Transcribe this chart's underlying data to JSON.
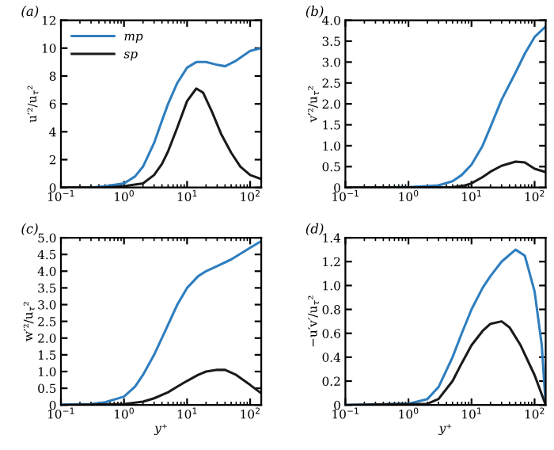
{
  "chart_data": [
    {
      "type": "line",
      "title": "(a)",
      "ylabel": "u′²/u$_{τ}$²",
      "log": "x",
      "legend": "top left",
      "grid": false,
      "xlim": [
        0.1,
        150
      ],
      "ylim": [
        0,
        12
      ],
      "xticks": [
        {
          "value": 0.1,
          "label": "10$^{−1}$"
        },
        {
          "value": 1,
          "label": "10$^{0}$"
        },
        {
          "value": 10,
          "label": "10$^{1}$"
        },
        {
          "value": 100,
          "label": "10$^{2}$"
        }
      ],
      "yticks": [
        0,
        2,
        4,
        6,
        8,
        10,
        12
      ],
      "series": [
        {
          "name": "mp",
          "color": "#2e7ebf",
          "x": [
            0.1,
            0.3,
            0.5,
            1,
            1.5,
            2,
            3,
            4,
            5,
            7,
            10,
            14,
            20,
            30,
            40,
            60,
            100,
            150
          ],
          "values": [
            0,
            0,
            0.1,
            0.3,
            0.8,
            1.5,
            3.2,
            4.8,
            6.0,
            7.5,
            8.6,
            9.0,
            9.0,
            8.8,
            8.7,
            9.1,
            9.8,
            10.0
          ]
        },
        {
          "name": "sp",
          "color": "#1a1a1a",
          "x": [
            0.1,
            0.5,
            1,
            2,
            3,
            4,
            5,
            7,
            10,
            14,
            18,
            25,
            35,
            50,
            70,
            100,
            150
          ],
          "values": [
            0,
            0,
            0.1,
            0.3,
            0.9,
            1.7,
            2.6,
            4.3,
            6.2,
            7.1,
            6.8,
            5.4,
            3.8,
            2.5,
            1.5,
            0.9,
            0.6
          ]
        }
      ]
    },
    {
      "type": "line",
      "title": "(b)",
      "ylabel": "v′²/u$_{τ}$²",
      "log": "x",
      "grid": false,
      "xlim": [
        0.1,
        150
      ],
      "ylim": [
        0,
        4
      ],
      "xticks": [
        {
          "value": 0.1,
          "label": "10$^{−1}$"
        },
        {
          "value": 1,
          "label": "10$^{0}$"
        },
        {
          "value": 10,
          "label": "10$^{1}$"
        },
        {
          "value": 100,
          "label": "10$^{2}$"
        }
      ],
      "yticks": [
        0,
        {
          "value": 0.5,
          "label": "0.5"
        },
        {
          "value": 1,
          "label": "1.0"
        },
        {
          "value": 1.5,
          "label": "1.5"
        },
        {
          "value": 2,
          "label": "2.0"
        },
        {
          "value": 2.5,
          "label": "2.5"
        },
        {
          "value": 3,
          "label": "3.0"
        },
        {
          "value": 3.5,
          "label": "3.5"
        },
        {
          "value": 4,
          "label": "4.0"
        }
      ],
      "series": [
        {
          "color": "#2e7ebf",
          "x": [
            0.1,
            1,
            3,
            5,
            7,
            10,
            15,
            20,
            30,
            50,
            70,
            100,
            150
          ],
          "values": [
            0,
            0.01,
            0.05,
            0.15,
            0.3,
            0.55,
            1.0,
            1.45,
            2.1,
            2.75,
            3.2,
            3.6,
            3.85
          ]
        },
        {
          "color": "#1a1a1a",
          "x": [
            0.1,
            5,
            8,
            10,
            15,
            20,
            30,
            50,
            70,
            100,
            150
          ],
          "values": [
            0,
            0.01,
            0.05,
            0.1,
            0.25,
            0.38,
            0.52,
            0.62,
            0.6,
            0.45,
            0.37
          ]
        }
      ]
    },
    {
      "type": "line",
      "title": "(c)",
      "xlabel": "y⁺",
      "ylabel": "w′²/u$_{τ}$²",
      "log": "x",
      "grid": false,
      "xlim": [
        0.1,
        150
      ],
      "ylim": [
        0,
        5
      ],
      "xticks": [
        {
          "value": 0.1,
          "label": "10$^{−1}$"
        },
        {
          "value": 1,
          "label": "10$^{0}$"
        },
        {
          "value": 10,
          "label": "10$^{1}$"
        },
        {
          "value": 100,
          "label": "10$^{2}$"
        }
      ],
      "yticks": [
        0,
        {
          "value": 0.5,
          "label": "0.5"
        },
        {
          "value": 1,
          "label": "1.0"
        },
        {
          "value": 1.5,
          "label": "1.5"
        },
        {
          "value": 2,
          "label": "2.0"
        },
        {
          "value": 2.5,
          "label": "2.5"
        },
        {
          "value": 3,
          "label": "3.0"
        },
        {
          "value": 3.5,
          "label": "3.5"
        },
        {
          "value": 4,
          "label": "4.0"
        },
        {
          "value": 4.5,
          "label": "4.5"
        },
        {
          "value": 5,
          "label": "5.0"
        }
      ],
      "series": [
        {
          "color": "#2e7ebf",
          "x": [
            0.1,
            0.3,
            0.5,
            1,
            1.5,
            2,
            3,
            5,
            7,
            10,
            15,
            20,
            30,
            50,
            100,
            150
          ],
          "values": [
            0.01,
            0.03,
            0.08,
            0.25,
            0.55,
            0.9,
            1.5,
            2.4,
            3.0,
            3.5,
            3.85,
            4.0,
            4.15,
            4.35,
            4.7,
            4.9
          ]
        },
        {
          "color": "#1a1a1a",
          "x": [
            0.1,
            1,
            2,
            3,
            5,
            7,
            10,
            15,
            20,
            30,
            40,
            60,
            100,
            150
          ],
          "values": [
            0,
            0.03,
            0.1,
            0.2,
            0.38,
            0.55,
            0.72,
            0.9,
            1.0,
            1.05,
            1.05,
            0.9,
            0.6,
            0.35
          ]
        }
      ]
    },
    {
      "type": "line",
      "title": "(d)",
      "xlabel": "y⁺",
      "ylabel": "−u′v′/u$_{τ}$²",
      "log": "x",
      "grid": false,
      "xlim": [
        0.1,
        150
      ],
      "ylim": [
        0,
        1.4
      ],
      "xticks": [
        {
          "value": 0.1,
          "label": "10$^{−1}$"
        },
        {
          "value": 1,
          "label": "10$^{0}$"
        },
        {
          "value": 10,
          "label": "10$^{1}$"
        },
        {
          "value": 100,
          "label": "10$^{2}$"
        }
      ],
      "yticks": [
        0,
        0.2,
        0.4,
        0.6,
        0.8,
        {
          "value": 1,
          "label": "1.0"
        },
        1.2,
        1.4
      ],
      "series": [
        {
          "color": "#2e7ebf",
          "x": [
            0.1,
            1,
            2,
            3,
            5,
            7,
            10,
            15,
            20,
            30,
            50,
            70,
            100,
            130,
            150
          ],
          "values": [
            0,
            0.01,
            0.05,
            0.15,
            0.4,
            0.6,
            0.8,
            0.98,
            1.08,
            1.2,
            1.3,
            1.25,
            0.95,
            0.5,
            0
          ]
        },
        {
          "color": "#1a1a1a",
          "x": [
            0.1,
            2,
            3,
            5,
            7,
            10,
            15,
            20,
            30,
            40,
            60,
            100,
            150
          ],
          "values": [
            0,
            0.01,
            0.05,
            0.2,
            0.35,
            0.5,
            0.62,
            0.68,
            0.7,
            0.65,
            0.5,
            0.25,
            0
          ]
        }
      ]
    }
  ]
}
